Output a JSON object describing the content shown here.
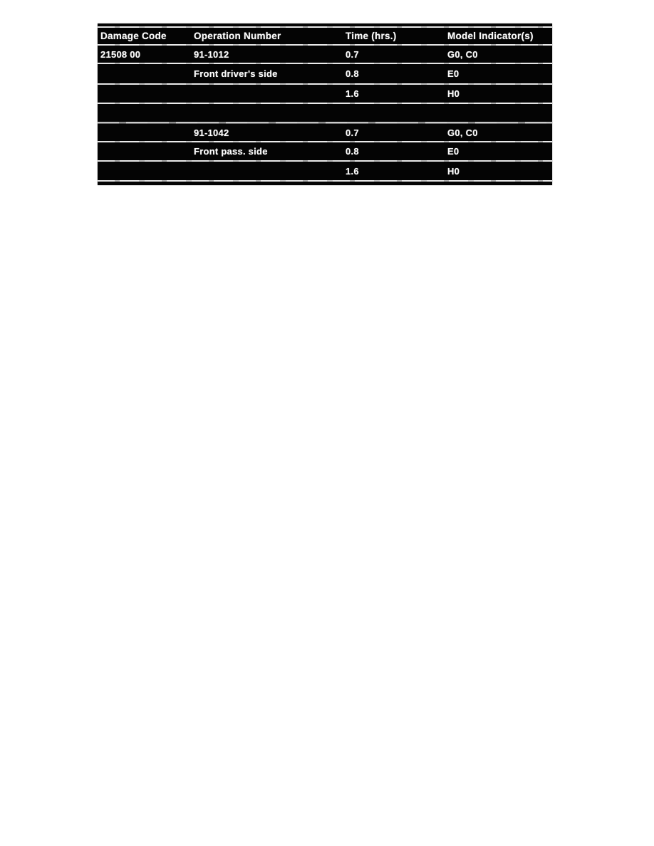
{
  "table": {
    "columns": [
      {
        "label": "Damage Code"
      },
      {
        "label": "Operation Number"
      },
      {
        "label": "Time (hrs.)"
      },
      {
        "label": "Model Indicator(s)"
      }
    ],
    "rows": [
      {
        "damage_code": "21508 00",
        "operation_number": "91-1012",
        "time_hrs": "0.7",
        "model_indicators": "G0, C0"
      },
      {
        "damage_code": "",
        "operation_number": "Front driver's side",
        "time_hrs": "0.8",
        "model_indicators": "E0"
      },
      {
        "damage_code": "",
        "operation_number": "",
        "time_hrs": "1.6",
        "model_indicators": "H0"
      },
      {
        "damage_code": "",
        "operation_number": "",
        "time_hrs": "",
        "model_indicators": ""
      },
      {
        "damage_code": "",
        "operation_number": "91-1042",
        "time_hrs": "0.7",
        "model_indicators": "G0, C0"
      },
      {
        "damage_code": "",
        "operation_number": "Front pass. side",
        "time_hrs": "0.8",
        "model_indicators": "E0"
      },
      {
        "damage_code": "",
        "operation_number": "",
        "time_hrs": "1.6",
        "model_indicators": "H0"
      }
    ],
    "colors": {
      "table_background": "#0a0a0a",
      "text": "#f4f4f4",
      "separator_line": "#e6e6e6",
      "page_background": "#ffffff"
    }
  }
}
